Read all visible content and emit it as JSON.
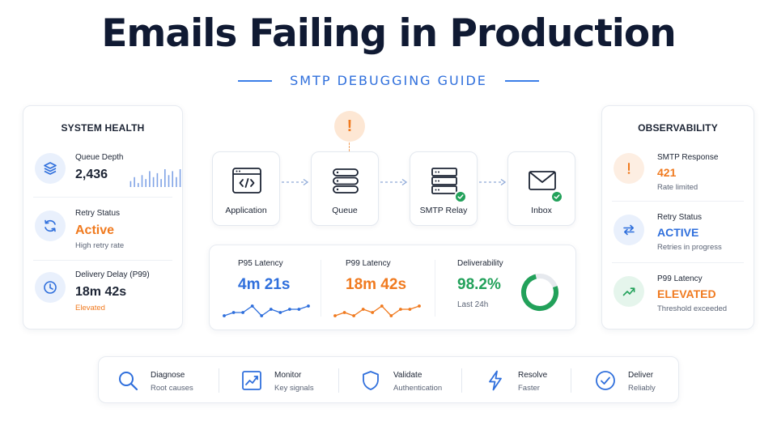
{
  "header": {
    "title": "Emails Failing in Production",
    "subtitle": "SMTP DEBUGGING GUIDE"
  },
  "colors": {
    "accent_blue": "#2f6fdc",
    "accent_orange": "#f07a1f",
    "accent_green": "#22a15a",
    "title": "#101a33"
  },
  "system_health": {
    "title": "SYSTEM HEALTH",
    "items": [
      {
        "label": "Queue Depth",
        "value": "2,436",
        "icon": "layers-icon",
        "sparkline": [
          3,
          5,
          2,
          6,
          4,
          8,
          5,
          7,
          4,
          9,
          6,
          8,
          5,
          9
        ]
      },
      {
        "label": "Retry Status",
        "value": "Active",
        "note": "High retry rate",
        "icon": "refresh-icon"
      },
      {
        "label": "Delivery Delay (P99)",
        "value": "18m 42s",
        "note": "Elevated",
        "icon": "clock-icon"
      }
    ]
  },
  "flow": {
    "alert_symbol": "!",
    "nodes": [
      {
        "label": "Application",
        "icon": "code-window-icon",
        "status": "none"
      },
      {
        "label": "Queue",
        "icon": "database-icon",
        "status": "warning"
      },
      {
        "label": "SMTP Relay",
        "icon": "server-icon",
        "status": "ok"
      },
      {
        "label": "Inbox",
        "icon": "envelope-icon",
        "status": "ok"
      }
    ]
  },
  "metrics": {
    "p95": {
      "label": "P95 Latency",
      "value": "4m 21s",
      "trend": [
        2,
        3,
        3,
        5,
        2,
        4,
        3,
        4,
        4,
        5
      ]
    },
    "p99": {
      "label": "P99 Latency",
      "value": "18m 42s",
      "trend": [
        2,
        3,
        2,
        4,
        3,
        5,
        2,
        4,
        4,
        5
      ]
    },
    "deliverability": {
      "label": "Deliverability",
      "value": "98.2%",
      "period": "Last 24h",
      "fraction": 0.982
    }
  },
  "observability": {
    "title": "OBSERVABILITY",
    "items": [
      {
        "label": "SMTP Response",
        "value": "421",
        "note": "Rate limited",
        "icon": "alert-icon"
      },
      {
        "label": "Retry Status",
        "value": "ACTIVE",
        "note": "Retries in progress",
        "icon": "swap-icon"
      },
      {
        "label": "P99 Latency",
        "value": "ELEVATED",
        "note": "Threshold exceeded",
        "icon": "trend-up-icon"
      }
    ]
  },
  "steps": [
    {
      "title": "Diagnose",
      "sub": "Root causes",
      "icon": "search-icon"
    },
    {
      "title": "Monitor",
      "sub": "Key signals",
      "icon": "chart-icon"
    },
    {
      "title": "Validate",
      "sub": "Authentication",
      "icon": "shield-icon"
    },
    {
      "title": "Resolve",
      "sub": "Faster",
      "icon": "bolt-icon"
    },
    {
      "title": "Deliver",
      "sub": "Reliably",
      "icon": "check-circle-icon"
    }
  ]
}
